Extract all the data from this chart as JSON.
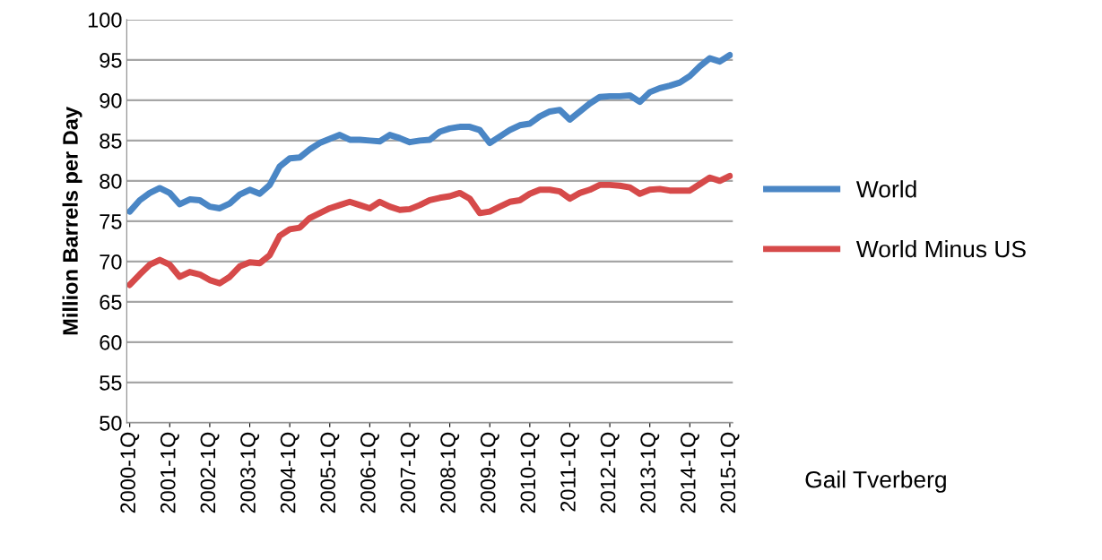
{
  "chart_data": {
    "type": "line",
    "ylabel": "Million Barrels per Day",
    "categories": [
      "2000-1Q",
      null,
      null,
      null,
      "2001-1Q",
      null,
      null,
      null,
      "2002-1Q",
      null,
      null,
      null,
      "2003-1Q",
      null,
      null,
      null,
      "2004-1Q",
      null,
      null,
      null,
      "2005-1Q",
      null,
      null,
      null,
      "2006-1Q",
      null,
      null,
      null,
      "2007-1Q",
      null,
      null,
      null,
      "2008-1Q",
      null,
      null,
      null,
      "2009-1Q",
      null,
      null,
      null,
      "2010-1Q",
      null,
      null,
      null,
      "2011-1Q",
      null,
      null,
      null,
      "2012-1Q",
      null,
      null,
      null,
      "2013-1Q",
      null,
      null,
      null,
      "2014-1Q",
      null,
      null,
      null,
      "2015-1Q"
    ],
    "series": [
      {
        "name": "World",
        "color": "#4a86c5",
        "values": [
          76.2,
          77.6,
          78.5,
          79.1,
          78.5,
          77.1,
          77.7,
          77.6,
          76.8,
          76.6,
          77.2,
          78.3,
          78.9,
          78.4,
          79.5,
          81.8,
          82.8,
          82.9,
          83.9,
          84.7,
          85.2,
          85.7,
          85.1,
          85.1,
          85.0,
          84.9,
          85.7,
          85.3,
          84.8,
          85.0,
          85.1,
          86.1,
          86.5,
          86.7,
          86.7,
          86.3,
          84.7,
          85.5,
          86.3,
          86.9,
          87.1,
          88.0,
          88.6,
          88.8,
          87.6,
          88.6,
          89.6,
          90.4,
          90.5,
          90.5,
          90.6,
          89.8,
          91.0,
          91.5,
          91.8,
          92.2,
          93.0,
          94.2,
          95.2,
          94.8,
          95.6
        ]
      },
      {
        "name": "World Minus US",
        "color": "#d64a4a",
        "values": [
          67.1,
          68.4,
          69.6,
          70.2,
          69.6,
          68.1,
          68.7,
          68.4,
          67.7,
          67.3,
          68.1,
          69.4,
          69.9,
          69.8,
          70.8,
          73.2,
          74.0,
          74.2,
          75.4,
          76.0,
          76.6,
          77.0,
          77.4,
          77.0,
          76.6,
          77.4,
          76.8,
          76.4,
          76.5,
          77.0,
          77.6,
          77.9,
          78.1,
          78.5,
          77.8,
          76.0,
          76.2,
          76.8,
          77.4,
          77.6,
          78.4,
          78.9,
          78.9,
          78.7,
          77.8,
          78.5,
          78.9,
          79.5,
          79.5,
          79.4,
          79.2,
          78.4,
          78.9,
          79.0,
          78.8,
          78.8,
          78.8,
          79.6,
          80.4,
          80.0,
          80.6
        ]
      }
    ],
    "ylim": [
      50,
      100
    ],
    "yticks": [
      50,
      55,
      60,
      65,
      70,
      75,
      80,
      85,
      90,
      95,
      100
    ],
    "grid": "y",
    "legend": "right",
    "marker": "none",
    "line_style": "solid",
    "annotations": [
      "Gail Tverberg"
    ]
  }
}
